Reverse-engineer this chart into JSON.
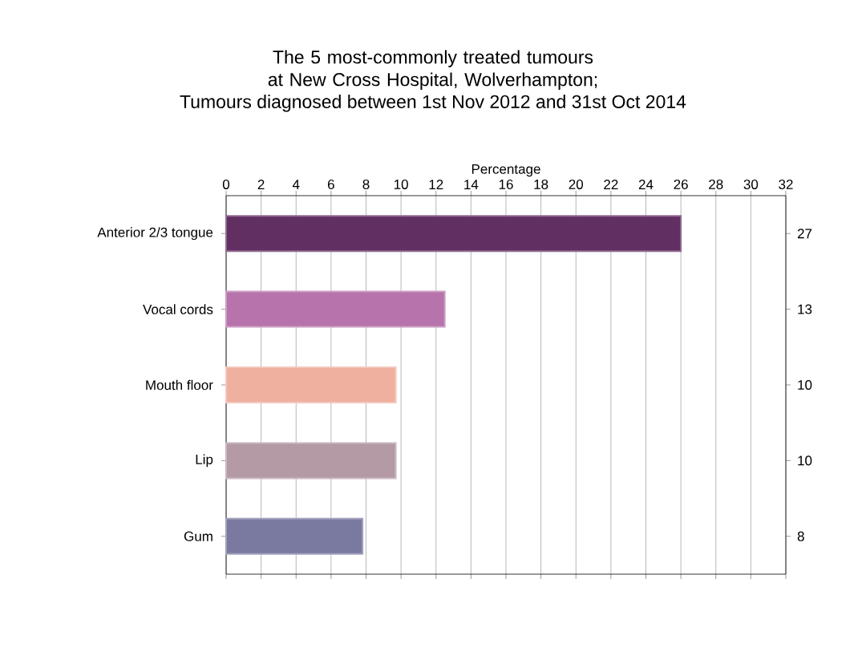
{
  "chart_data": {
    "type": "bar",
    "orientation": "horizontal",
    "title": "The 5 most-commonly treated tumours at New Cross Hospital, Wolverhampton;",
    "subtitle": "Tumours diagnosed between 1st Nov 2012 and 31st Oct 2014",
    "xlabel": "Percentage",
    "categories": [
      "Anterior 2/3 tongue",
      "Vocal cords",
      "Mouth floor",
      "Lip",
      "Gum"
    ],
    "values": [
      26,
      12.5,
      9.7,
      9.7,
      7.8
    ],
    "colors": [
      "#622f63",
      "#b773ab",
      "#efb0a0",
      "#b39aa5",
      "#7a79a0"
    ],
    "annotations": [
      "27",
      "13",
      "10",
      "10",
      "8"
    ],
    "xlim": [
      0,
      32
    ],
    "xticks": [
      0,
      2,
      4,
      6,
      8,
      10,
      12,
      14,
      16,
      18,
      20,
      22,
      24,
      26,
      28,
      30,
      32
    ],
    "grid": "x"
  }
}
